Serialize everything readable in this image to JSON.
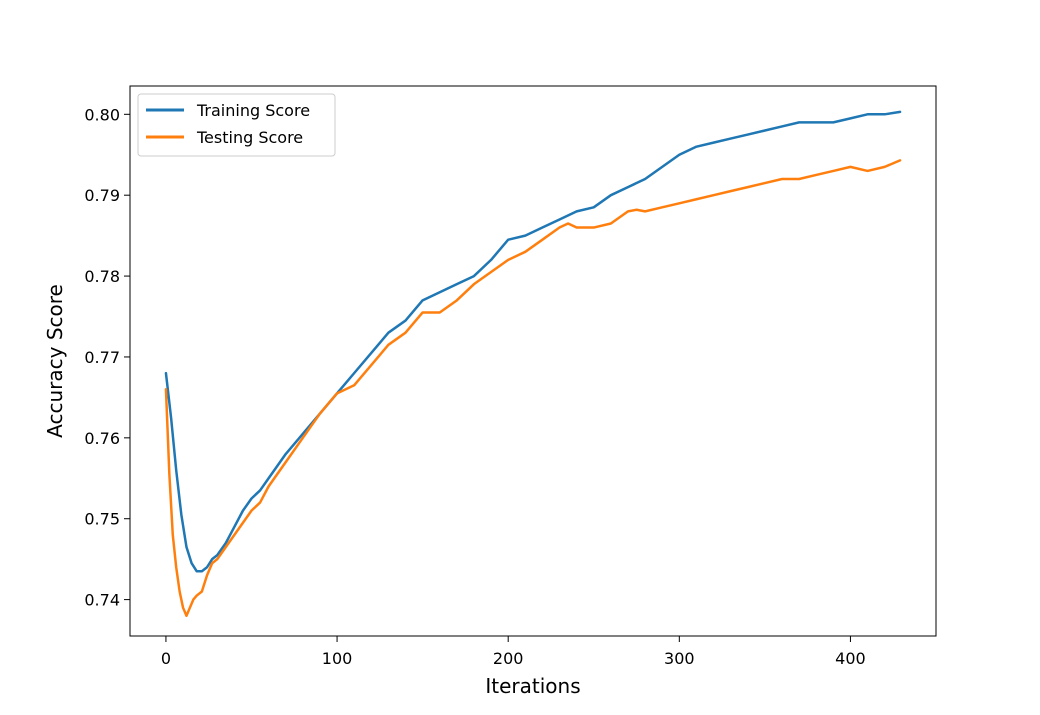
{
  "chart_data": {
    "type": "line",
    "xlabel": "Iterations",
    "ylabel": "Accuracy Score",
    "xlim": [
      -21,
      450
    ],
    "ylim": [
      0.7355,
      0.8035
    ],
    "xticks": [
      0,
      100,
      200,
      300,
      400
    ],
    "xtick_labels": [
      "0",
      "100",
      "200",
      "300",
      "400"
    ],
    "yticks": [
      0.74,
      0.75,
      0.76,
      0.77,
      0.78,
      0.79,
      0.8
    ],
    "ytick_labels": [
      "0.74",
      "0.75",
      "0.76",
      "0.77",
      "0.78",
      "0.79",
      "0.80"
    ],
    "grid": false,
    "legend_position": "upper-left",
    "series": [
      {
        "name": "Training Score",
        "color": "#1f77b4",
        "x": [
          0,
          3,
          6,
          9,
          12,
          15,
          18,
          21,
          24,
          27,
          30,
          35,
          40,
          45,
          50,
          55,
          60,
          65,
          70,
          80,
          90,
          100,
          110,
          120,
          130,
          140,
          150,
          160,
          170,
          180,
          190,
          200,
          210,
          220,
          230,
          240,
          250,
          260,
          270,
          280,
          290,
          300,
          310,
          320,
          330,
          340,
          350,
          360,
          370,
          380,
          390,
          400,
          410,
          420,
          429
        ],
        "values": [
          0.768,
          0.7625,
          0.756,
          0.7505,
          0.7465,
          0.7445,
          0.7435,
          0.7435,
          0.744,
          0.745,
          0.7455,
          0.747,
          0.749,
          0.751,
          0.7525,
          0.7535,
          0.755,
          0.7565,
          0.758,
          0.7605,
          0.763,
          0.7655,
          0.768,
          0.7705,
          0.773,
          0.7745,
          0.777,
          0.778,
          0.779,
          0.78,
          0.782,
          0.7845,
          0.785,
          0.786,
          0.787,
          0.788,
          0.7885,
          0.79,
          0.791,
          0.792,
          0.7935,
          0.795,
          0.796,
          0.7965,
          0.797,
          0.7975,
          0.798,
          0.7985,
          0.799,
          0.799,
          0.799,
          0.7995,
          0.8,
          0.8,
          0.8003
        ]
      },
      {
        "name": "Testing Score",
        "color": "#ff7f0e",
        "x": [
          0,
          2,
          4,
          6,
          8,
          10,
          12,
          14,
          16,
          18,
          21,
          24,
          27,
          30,
          35,
          40,
          45,
          50,
          55,
          60,
          65,
          70,
          80,
          90,
          100,
          110,
          120,
          130,
          140,
          150,
          160,
          170,
          180,
          190,
          200,
          210,
          220,
          230,
          235,
          240,
          250,
          260,
          270,
          275,
          280,
          290,
          300,
          310,
          320,
          330,
          340,
          350,
          360,
          370,
          380,
          390,
          400,
          410,
          420,
          429
        ],
        "values": [
          0.766,
          0.7555,
          0.748,
          0.744,
          0.741,
          0.739,
          0.738,
          0.739,
          0.74,
          0.7405,
          0.741,
          0.743,
          0.7445,
          0.745,
          0.7465,
          0.748,
          0.7495,
          0.751,
          0.752,
          0.754,
          0.7555,
          0.757,
          0.76,
          0.763,
          0.7655,
          0.7665,
          0.769,
          0.7715,
          0.773,
          0.7755,
          0.7755,
          0.777,
          0.779,
          0.7805,
          0.782,
          0.783,
          0.7845,
          0.786,
          0.7865,
          0.786,
          0.786,
          0.7865,
          0.788,
          0.7882,
          0.788,
          0.7885,
          0.789,
          0.7895,
          0.79,
          0.7905,
          0.791,
          0.7915,
          0.792,
          0.792,
          0.7925,
          0.793,
          0.7935,
          0.793,
          0.7935,
          0.7943
        ]
      }
    ]
  }
}
